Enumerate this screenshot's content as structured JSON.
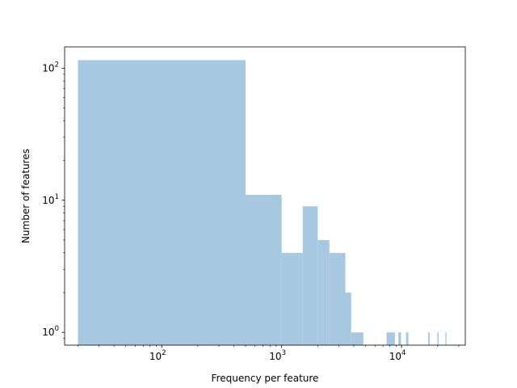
{
  "chart_data": {
    "type": "bar",
    "title": "",
    "xlabel": "Frequency per feature",
    "ylabel": "Number of features",
    "x_scale": "log",
    "y_scale": "log",
    "xlim": [
      15.5,
      34000
    ],
    "ylim": [
      0.8,
      145
    ],
    "grid": false,
    "legend": "none",
    "bar_color": "#a6c8e0",
    "x_ticks": [
      {
        "value": 100,
        "base": "10",
        "exp": "2"
      },
      {
        "value": 1000,
        "base": "10",
        "exp": "3"
      },
      {
        "value": 10000,
        "base": "10",
        "exp": "4"
      }
    ],
    "y_ticks": [
      {
        "value": 1,
        "base": "10",
        "exp": "0"
      },
      {
        "value": 10,
        "base": "10",
        "exp": "1"
      },
      {
        "value": 100,
        "base": "10",
        "exp": "2"
      }
    ],
    "bins": [
      {
        "x0": 20,
        "x1": 500,
        "count": 115
      },
      {
        "x0": 500,
        "x1": 1000,
        "count": 11
      },
      {
        "x0": 1000,
        "x1": 1500,
        "count": 4
      },
      {
        "x0": 1500,
        "x1": 2000,
        "count": 9
      },
      {
        "x0": 2000,
        "x1": 2500,
        "count": 5
      },
      {
        "x0": 2500,
        "x1": 3400,
        "count": 4
      },
      {
        "x0": 3400,
        "x1": 3800,
        "count": 2
      },
      {
        "x0": 3800,
        "x1": 4800,
        "count": 1
      },
      {
        "x0": 7500,
        "x1": 8800,
        "count": 1
      },
      {
        "x0": 9400,
        "x1": 9900,
        "count": 1
      },
      {
        "x0": 10900,
        "x1": 11400,
        "count": 1
      },
      {
        "x0": 16700,
        "x1": 17200,
        "count": 1
      },
      {
        "x0": 19900,
        "x1": 20400,
        "count": 1
      },
      {
        "x0": 23200,
        "x1": 23700,
        "count": 1
      }
    ]
  }
}
